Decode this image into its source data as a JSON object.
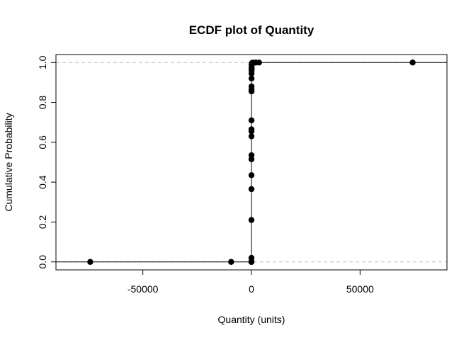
{
  "chart_data": {
    "type": "scatter",
    "title": "ECDF plot of Quantity",
    "xlabel": "Quantity (units)",
    "ylabel": "Cumulative Probability",
    "xlim": [
      -90000,
      90000
    ],
    "ylim": [
      -0.04,
      1.04
    ],
    "x_ticks": [
      -50000,
      0,
      50000
    ],
    "x_tick_labels": [
      "-50000",
      "0",
      "50000"
    ],
    "y_ticks": [
      0.0,
      0.2,
      0.4,
      0.6,
      0.8,
      1.0
    ],
    "y_tick_labels": [
      "0.0",
      "0.2",
      "0.4",
      "0.6",
      "0.8",
      "1.0"
    ],
    "reference_lines_y": [
      0,
      1
    ],
    "grid": false,
    "points": [
      {
        "x": -74215,
        "y": 0.0
      },
      {
        "x": -9360,
        "y": 0.0
      },
      {
        "x": -1,
        "y": 0.0
      },
      {
        "x": 0,
        "y": 0.0
      },
      {
        "x": 1,
        "y": 0.003
      },
      {
        "x": 2,
        "y": 0.02
      },
      {
        "x": 3,
        "y": 0.21
      },
      {
        "x": 4,
        "y": 0.365
      },
      {
        "x": 5,
        "y": 0.435
      },
      {
        "x": 6,
        "y": 0.515
      },
      {
        "x": 8,
        "y": 0.535
      },
      {
        "x": 10,
        "y": 0.63
      },
      {
        "x": 12,
        "y": 0.655
      },
      {
        "x": 16,
        "y": 0.665
      },
      {
        "x": 20,
        "y": 0.71
      },
      {
        "x": 24,
        "y": 0.855
      },
      {
        "x": 30,
        "y": 0.865
      },
      {
        "x": 36,
        "y": 0.88
      },
      {
        "x": 40,
        "y": 0.92
      },
      {
        "x": 48,
        "y": 0.945
      },
      {
        "x": 60,
        "y": 0.96
      },
      {
        "x": 72,
        "y": 0.97
      },
      {
        "x": 80,
        "y": 0.975
      },
      {
        "x": 100,
        "y": 0.985
      },
      {
        "x": 120,
        "y": 0.99
      },
      {
        "x": 144,
        "y": 0.993
      },
      {
        "x": 200,
        "y": 0.996
      },
      {
        "x": 300,
        "y": 0.998
      },
      {
        "x": 500,
        "y": 0.999
      },
      {
        "x": 1000,
        "y": 0.9995
      },
      {
        "x": 2000,
        "y": 0.9997
      },
      {
        "x": 3500,
        "y": 0.9999
      },
      {
        "x": 74215,
        "y": 1.0
      }
    ]
  }
}
